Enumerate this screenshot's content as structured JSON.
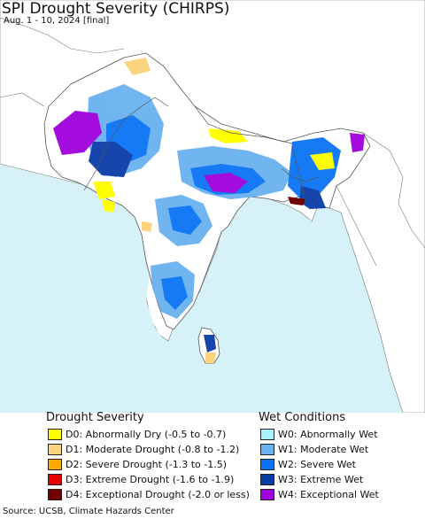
{
  "header": {
    "title": "SPI Drought Severity (CHIRPS)",
    "subtitle": "Aug. 1 - 10, 2024 [final]"
  },
  "legend": {
    "drought": {
      "heading": "Drought Severity",
      "items": [
        {
          "label": "D0: Abnormally Dry (-0.5 to -0.7)",
          "color": "#ffff00"
        },
        {
          "label": "D1: Moderate Drought (-0.8 to -1.2)",
          "color": "#fcd37f"
        },
        {
          "label": "D2: Severe Drought (-1.3 to -1.5)",
          "color": "#ffaa00"
        },
        {
          "label": "D3: Extreme Drought (-1.6 to -1.9)",
          "color": "#e60000"
        },
        {
          "label": "D4: Exceptional Drought (-2.0 or less)",
          "color": "#730000"
        }
      ]
    },
    "wet": {
      "heading": "Wet Conditions",
      "items": [
        {
          "label": "W0: Abnormally Wet",
          "color": "#aaf0ff"
        },
        {
          "label": "W1: Moderate Wet",
          "color": "#6ab2f0"
        },
        {
          "label": "W2: Severe Wet",
          "color": "#0a73f5"
        },
        {
          "label": "W3: Extreme Wet",
          "color": "#0a3ca8"
        },
        {
          "label": "W4: Exceptional Wet",
          "color": "#a000dc"
        }
      ]
    }
  },
  "footer": {
    "source": "Source: UCSB, Climate Hazards Center"
  },
  "colors": {
    "ocean": "#d7f1f8",
    "land_outside": "#ffffff",
    "border": "#555555"
  }
}
